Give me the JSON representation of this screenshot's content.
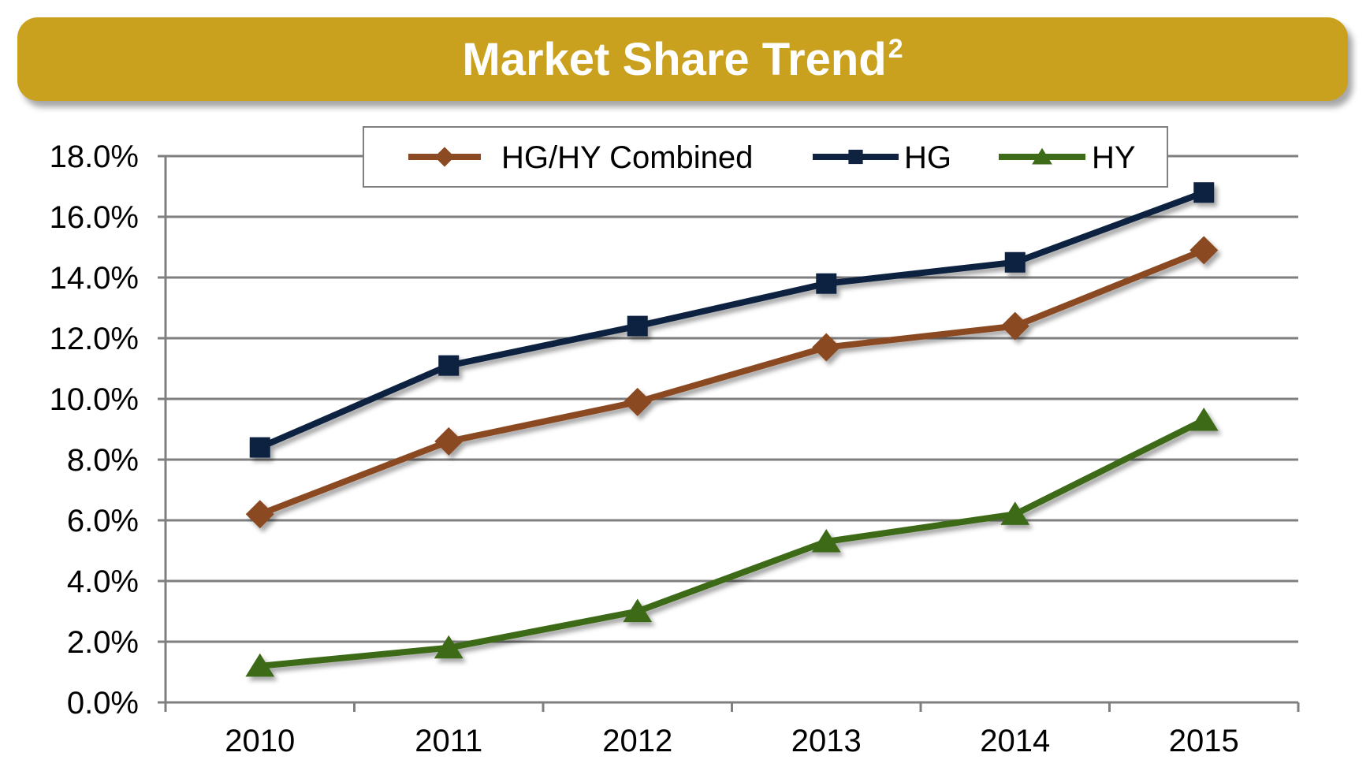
{
  "chart_data": {
    "type": "line",
    "title": "Market Share Trend",
    "title_superscript": "2",
    "xlabel": "",
    "ylabel": "",
    "categories": [
      "2010",
      "2011",
      "2012",
      "2013",
      "2014",
      "2015"
    ],
    "ylim": [
      0,
      18
    ],
    "yticks": [
      0,
      2,
      4,
      6,
      8,
      10,
      12,
      14,
      16,
      18
    ],
    "ytick_labels": [
      "0.0%",
      "2.0%",
      "4.0%",
      "6.0%",
      "8.0%",
      "10.0%",
      "12.0%",
      "14.0%",
      "16.0%",
      "18.0%"
    ],
    "grid": true,
    "legend_position": "top",
    "series": [
      {
        "name": "HG/HY Combined",
        "marker": "diamond",
        "color": "#8B4A22",
        "values": [
          6.2,
          8.6,
          9.9,
          11.7,
          12.4,
          14.9
        ]
      },
      {
        "name": "HG",
        "marker": "square",
        "color": "#0F2340",
        "values": [
          8.4,
          11.1,
          12.4,
          13.8,
          14.5,
          16.8
        ]
      },
      {
        "name": "HY",
        "marker": "triangle",
        "color": "#3D6B18",
        "values": [
          1.2,
          1.8,
          3.0,
          5.3,
          6.2,
          9.3
        ]
      }
    ]
  },
  "colors": {
    "title_bar": "#C9A11E",
    "title_text": "#FFFFFF",
    "grid": "#7F7F7F",
    "axis": "#7F7F7F",
    "label_text": "#000000"
  }
}
